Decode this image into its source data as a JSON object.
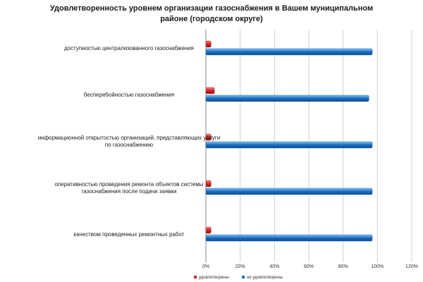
{
  "chart_data": {
    "type": "bar",
    "orientation": "horizontal",
    "title_lines": [
      "Удовлетворенность уровнем организации газоснабжения в Вашем муниципальном",
      "районе (городском округе)"
    ],
    "categories": [
      [
        "доступностью централизованного газоснабжения"
      ],
      [
        "бесперебойностью газоснабжения"
      ],
      [
        "информационной открытостью организаций, представляющих услуги",
        "по газоснабжению"
      ],
      [
        "оперативностью проведения ремонта объектов системы",
        "газоснабжения после подачи заявки"
      ],
      [
        "качеством проведенных ремонтных работ"
      ]
    ],
    "series": [
      {
        "name": "удовлетворены",
        "color": "#d42a2a",
        "values": [
          3,
          5,
          3,
          3,
          3
        ]
      },
      {
        "name": "не удовлетворены",
        "color": "#1f72c4",
        "values": [
          97,
          95,
          97,
          97,
          97
        ]
      }
    ],
    "x_ticks": [
      "0%",
      "20%",
      "40%",
      "60%",
      "80%",
      "100%",
      "120%"
    ],
    "xlim": [
      0,
      120
    ],
    "grid": true,
    "legend_position": "bottom"
  }
}
